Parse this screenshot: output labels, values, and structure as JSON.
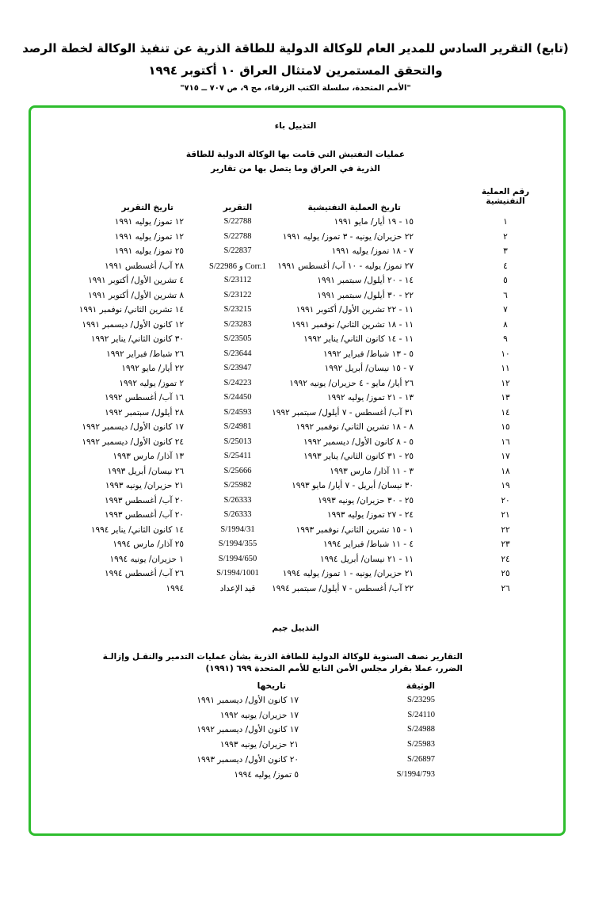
{
  "header": {
    "title_line1": "(تابع) التقرير السادس للمدير العام للوكالة الدولية للطاقة الذرية عن تنفيذ الوكالة لخطة الرصد",
    "title_line2": "والتحقق المستمرين لامتثال العراق ١٠ أكتوبر ١٩٩٤",
    "source": "\"الأمم المتحدة، سلسلة الكتب الزرقاء، مج ٩، ص ٧٠٧ ــ ٧١٥\""
  },
  "frame_color": "#2ebd2e",
  "annex_b": {
    "title": "التذييل باء",
    "heading_line1": "عمليات التفتيش التي قامت بها الوكالة الدولية للطاقة",
    "heading_line2": "الذرية في العراق وما يتصل بها من تقارير",
    "columns": {
      "number_line1": "رقم العملية",
      "number_line2": "التفتيشية",
      "inspection_date": "تاريخ العملية التفتيشية",
      "report": "التقرير",
      "report_date": "تاريخ التقرير"
    },
    "rows": [
      [
        "١",
        "١٥ - ١٩ أيار/ مايو ١٩٩١",
        "S/22788",
        "١٢ تموز/ يوليه ١٩٩١"
      ],
      [
        "٢",
        "٢٢ حزيران/ يونيه - ٣ تموز/ يوليه ١٩٩١",
        "S/22788",
        "١٢ تموز/ يوليه ١٩٩١"
      ],
      [
        "٣",
        "٧ - ١٨ تموز/ يوليه ١٩٩١",
        "S/22837",
        "٢٥ تموز/ يوليه ١٩٩١"
      ],
      [
        "٤",
        "٢٧ تموز/ يوليه - ١٠ آب/ أغسطس ١٩٩١",
        "S/22986 و Corr.1",
        "٢٨ آب/ أغسطس ١٩٩١"
      ],
      [
        "٥",
        "١٤ - ٢٠ أيلول/ سبتمبر ١٩٩١",
        "S/23112",
        "٤ تشرين الأول/ أكتوبر ١٩٩١"
      ],
      [
        "٦",
        "٢٢ - ٣٠ أيلول/ سبتمبر ١٩٩١",
        "S/23122",
        "٨ تشرين الأول/ أكتوبر ١٩٩١"
      ],
      [
        "٧",
        "١١ - ٢٢ تشرين الأول/ أكتوبر ١٩٩١",
        "S/23215",
        "١٤ تشرين الثاني/ نوفمبر ١٩٩١"
      ],
      [
        "٨",
        "١١ - ١٨ تشرين الثاني/ نوفمبر ١٩٩١",
        "S/23283",
        "١٢ كانون الأول/ ديسمبر ١٩٩١"
      ],
      [
        "٩",
        "١١ - ١٤ كانون الثاني/ يناير ١٩٩٢",
        "S/23505",
        "٣٠ كانون الثاني/ يناير ١٩٩٢"
      ],
      [
        "١٠",
        "٥ - ١٣ شباط/ فبراير ١٩٩٢",
        "S/23644",
        "٢٦ شباط/ فبراير ١٩٩٢"
      ],
      [
        "١١",
        "٧ - ١٥ نيسان/ أبريل ١٩٩٢",
        "S/23947",
        "٢٢ أيار/ مايو ١٩٩٢"
      ],
      [
        "١٢",
        "٢٦ أيار/ مايو - ٤ حزيران/ يونيه ١٩٩٢",
        "S/24223",
        "٢ تموز/ يوليه ١٩٩٢"
      ],
      [
        "١٣",
        "١٣ - ٢١ تموز/ يوليه ١٩٩٢",
        "S/24450",
        "١٦ آب/ أغسطس ١٩٩٢"
      ],
      [
        "١٤",
        "٣١ آب/ أغسطس - ٧ أيلول/ سبتمبر ١٩٩٢",
        "S/24593",
        "٢٨ أيلول/ سبتمبر ١٩٩٢"
      ],
      [
        "١٥",
        "٨ - ١٨ تشرين الثاني/ نوفمبر ١٩٩٢",
        "S/24981",
        "١٧ كانون الأول/ ديسمبر ١٩٩٢"
      ],
      [
        "١٦",
        "٥ - ٨ كانون الأول/ ديسمبر ١٩٩٢",
        "S/25013",
        "٢٤ كانون الأول/ ديسمبر ١٩٩٢"
      ],
      [
        "١٧",
        "٢٥ - ٣١ كانون الثاني/ يناير ١٩٩٣",
        "S/25411",
        "١٣ آذار/ مارس ١٩٩٣"
      ],
      [
        "١٨",
        "٣ - ١١ آذار/ مارس ١٩٩٣",
        "S/25666",
        "٢٦ نيسان/ أبريل ١٩٩٣"
      ],
      [
        "١٩",
        "٣٠ نيسان/ أبريل - ٧ أيار/ مايو ١٩٩٣",
        "S/25982",
        "٢١ حزيران/ يونيه ١٩٩٣"
      ],
      [
        "٢٠",
        "٢٥ - ٣٠ حزيران/ يونيه ١٩٩٣",
        "S/26333",
        "٢٠ آب/ أغسطس ١٩٩٣"
      ],
      [
        "٢١",
        "٢٤ - ٢٧ تموز/ يوليه ١٩٩٣",
        "S/26333",
        "٢٠ آب/ أغسطس ١٩٩٣"
      ],
      [
        "٢٢",
        "١ - ١٥ تشرين الثاني/ نوفمبر ١٩٩٣",
        "S/1994/31",
        "١٤ كانون الثاني/ يناير ١٩٩٤"
      ],
      [
        "٢٣",
        "٤ - ١١ شباط/ فبراير ١٩٩٤",
        "S/1994/355",
        "٢٥ آذار/ مارس ١٩٩٤"
      ],
      [
        "٢٤",
        "١١ - ٢١ نيسان/ أبريل ١٩٩٤",
        "S/1994/650",
        "١ حزيران/ يونيه ١٩٩٤"
      ],
      [
        "٢٥",
        "٢١ حزيران/ يونيه - ١ تموز/ يوليه ١٩٩٤",
        "S/1994/1001",
        "٢٦ آب/ أغسطس ١٩٩٤"
      ],
      [
        "٢٦",
        "٢٢ آب/ أغسطس - ٧ أيلول/ سبتمبر ١٩٩٤",
        "قيد الإعداد",
        "١٩٩٤"
      ]
    ]
  },
  "annex_c": {
    "title": "التذييل جيم",
    "heading_line1": "التقارير نصف السنوية للوكالة الدولية للطاقة الذرية بشأن عمليات التدمير والنقـل وإزالـة",
    "heading_line2": "الضرر، عملا بقرار مجلس الأمن التابع للأمم المتحدة ٦٩٩ (١٩٩١)",
    "columns": {
      "document": "الوثيقة",
      "date": "تاريخها"
    },
    "rows": [
      [
        "S/23295",
        "١٧ كانون الأول/ ديسمبر ١٩٩١"
      ],
      [
        "S/24110",
        "١٧ حزيران/ يونيه ١٩٩٢"
      ],
      [
        "S/24988",
        "١٧ كانون الأول/ ديسمبر ١٩٩٢"
      ],
      [
        "S/25983",
        "٢١ حزيران/ يونيه ١٩٩٣"
      ],
      [
        "S/26897",
        "٢٠ كانون الأول/ ديسمبر ١٩٩٣"
      ],
      [
        "S/1994/793",
        "٥ تموز/ يوليه ١٩٩٤"
      ]
    ]
  }
}
